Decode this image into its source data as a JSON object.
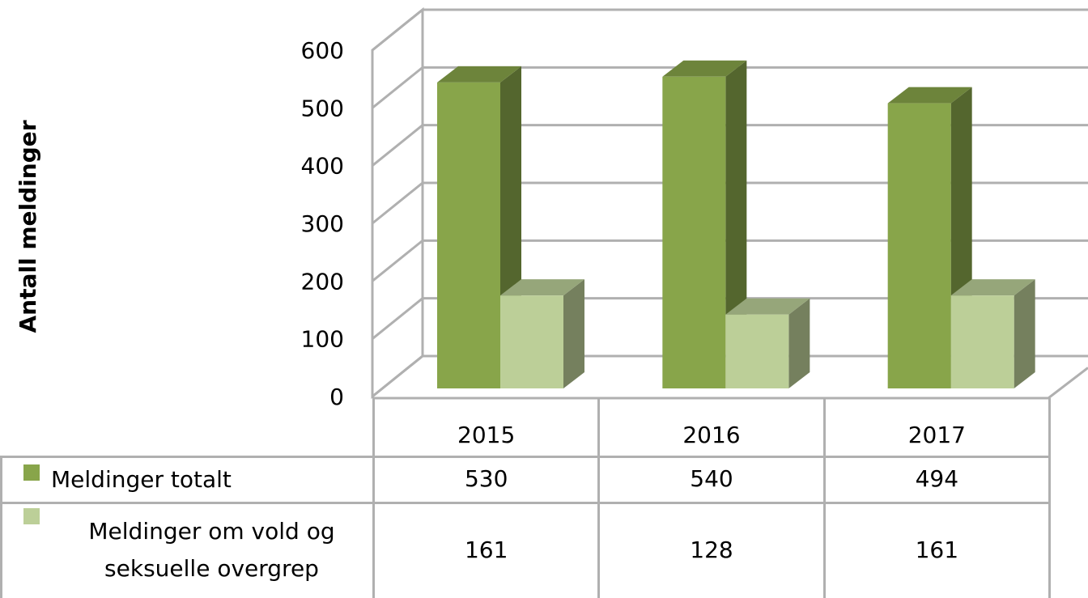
{
  "chart_data": {
    "type": "bar3d",
    "y_axis_label": "Antall meldinger",
    "categories": [
      "2015",
      "2016",
      "2017"
    ],
    "series": [
      {
        "name": "Meldinger totalt",
        "color": "#88a54a",
        "values": [
          530,
          540,
          494
        ]
      },
      {
        "name": "Meldinger om vold og seksuelle overgrep",
        "color": "#bccf98",
        "values": [
          161,
          128,
          161
        ]
      }
    ],
    "ylim": [
      0,
      600
    ],
    "yticks": [
      0,
      100,
      200,
      300,
      400,
      500,
      600
    ],
    "grid": true
  }
}
